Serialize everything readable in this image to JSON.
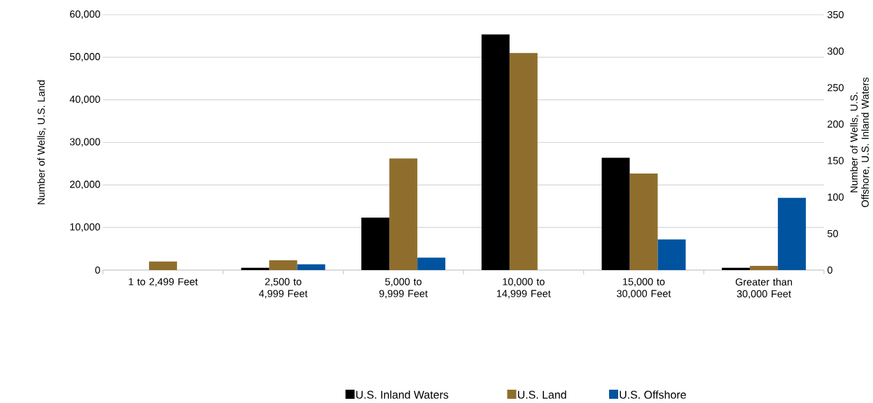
{
  "chart_data": {
    "type": "bar",
    "categories": [
      "1 to 2,499 Feet",
      "2,500 to 4,999 Feet",
      "5,000 to 9,999 Feet",
      "10,000 to 14,999 Feet",
      "15,000 to 30,000 Feet",
      "Greater than 30,000 Feet"
    ],
    "series": [
      {
        "name": "U.S. Inland Waters",
        "color": "#000000",
        "axis": "y2",
        "values": [
          null,
          3,
          72,
          323,
          154,
          3
        ]
      },
      {
        "name": "U.S. Land",
        "color": "#8f6e2d",
        "values": [
          2000,
          2300,
          26200,
          51000,
          22700,
          1000
        ]
      },
      {
        "name": "U.S. Offshore",
        "color": "#00549f",
        "axis": "y2",
        "values": [
          null,
          8,
          17,
          null,
          42,
          99
        ]
      }
    ],
    "ylabel": "Number of Wells, U.S. Land",
    "y2label": "Number of Wells, U.S. Offshore, U.S. Inland Waters",
    "ylim": [
      0,
      60000
    ],
    "yticks": [
      {
        "value": 0,
        "label": "0"
      },
      {
        "value": 10000,
        "label": "10,000"
      },
      {
        "value": 20000,
        "label": "20,000"
      },
      {
        "value": 30000,
        "label": "30,000"
      },
      {
        "value": 40000,
        "label": "40,000"
      },
      {
        "value": 50000,
        "label": "50,000"
      },
      {
        "value": 60000,
        "label": "60,000"
      }
    ],
    "y2lim": [
      0,
      350
    ],
    "y2ticks": [
      0,
      50,
      100,
      150,
      200,
      250,
      300,
      350
    ],
    "grid": "y",
    "legend": "bottom"
  }
}
